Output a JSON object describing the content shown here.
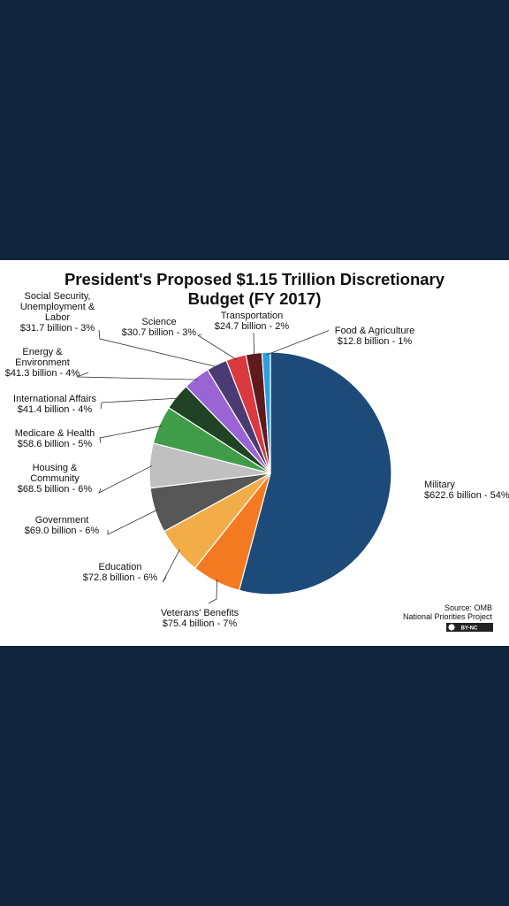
{
  "chart_data": {
    "type": "pie",
    "title_lines": [
      "President's Proposed $1.15 Trillion  Discretionary",
      "Budget (FY 2017)"
    ],
    "units": "billion",
    "slices": [
      {
        "name": "Military",
        "value": 622.6,
        "percent": 54,
        "color": "#1c4a79",
        "label_lines": [
          "Military",
          "$622.6 billion - 54%"
        ]
      },
      {
        "name": "Veterans' Benefits",
        "value": 75.4,
        "percent": 7,
        "color": "#f47a22",
        "label_lines": [
          "Veterans' Benefits",
          "$75.4 billion - 7%"
        ]
      },
      {
        "name": "Education",
        "value": 72.8,
        "percent": 6,
        "color": "#f2ad48",
        "label_lines": [
          "Education",
          "$72.8 billion - 6%"
        ]
      },
      {
        "name": "Government",
        "value": 69.0,
        "percent": 6,
        "color": "#565656",
        "label_lines": [
          "Government",
          "$69.0 billion - 6%"
        ]
      },
      {
        "name": "Housing & Community",
        "value": 68.5,
        "percent": 6,
        "color": "#c0c0c0",
        "label_lines": [
          "Housing &",
          "Community",
          "$68.5 billion - 6%"
        ]
      },
      {
        "name": "Medicare & Health",
        "value": 58.6,
        "percent": 5,
        "color": "#3f9c48",
        "label_lines": [
          "Medicare  & Health",
          "$58.6 billion - 5%"
        ]
      },
      {
        "name": "International Affairs",
        "value": 41.4,
        "percent": 4,
        "color": "#1f4324",
        "label_lines": [
          "International  Affairs",
          "$41.4 billion - 4%"
        ]
      },
      {
        "name": "Energy & Environment",
        "value": 41.3,
        "percent": 4,
        "color": "#9b64d4",
        "label_lines": [
          "Energy &",
          "Environment",
          "$41.3 billion - 4%"
        ]
      },
      {
        "name": "Social Security, Unemployment & Labor",
        "value": 31.7,
        "percent": 3,
        "color": "#4a3b73",
        "label_lines": [
          "Social Security,",
          "Unemployment &",
          "Labor",
          "$31.7 billion - 3%"
        ]
      },
      {
        "name": "Science",
        "value": 30.7,
        "percent": 3,
        "color": "#d9393f",
        "label_lines": [
          "Science",
          "$30.7 billion - 3%"
        ]
      },
      {
        "name": "Transportation",
        "value": 24.7,
        "percent": 2,
        "color": "#5e1a1d",
        "label_lines": [
          "Transportation",
          "$24.7 billion - 2%"
        ]
      },
      {
        "name": "Food & Agriculture",
        "value": 12.8,
        "percent": 1,
        "color": "#2b9fe0",
        "label_lines": [
          "Food & Agriculture",
          "$12.8 billion - 1%"
        ]
      }
    ],
    "source_lines": [
      "Source: OMB",
      "National Priorities Project"
    ],
    "license_badge": "BY-NC"
  }
}
